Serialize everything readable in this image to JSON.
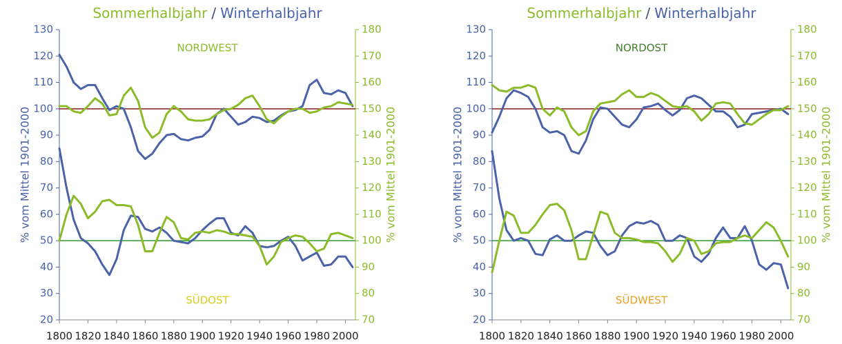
{
  "chart_data": [
    {
      "type": "line",
      "title": [
        "Sommerhalbjahr",
        "/",
        "Winterhalbjahr"
      ],
      "title_colors": [
        "#8cbb2a",
        "#3d4a7a",
        "#4a62a8"
      ],
      "ylabel": "% vom Mittel  1901-2000",
      "ylabel_color": "#4a62a8",
      "y2label": "% vom Mittel  1901-2000",
      "y2label_color": "#8cbb2a",
      "x": [
        1800,
        1805,
        1810,
        1815,
        1820,
        1825,
        1830,
        1835,
        1840,
        1845,
        1850,
        1855,
        1860,
        1865,
        1870,
        1875,
        1880,
        1885,
        1890,
        1895,
        1900,
        1905,
        1910,
        1915,
        1920,
        1925,
        1930,
        1935,
        1940,
        1945,
        1950,
        1955,
        1960,
        1965,
        1970,
        1975,
        1980,
        1985,
        1990,
        1995,
        2000,
        2005
      ],
      "xlim": [
        1800,
        2007
      ],
      "xticks": [
        1800,
        1820,
        1840,
        1860,
        1880,
        1900,
        1920,
        1940,
        1960,
        1980,
        2000
      ],
      "ylim": [
        20,
        130
      ],
      "yticks": [
        20,
        30,
        40,
        50,
        60,
        70,
        80,
        90,
        100,
        110,
        120,
        130
      ],
      "y2lim": [
        70,
        180
      ],
      "y2ticks": [
        70,
        80,
        90,
        100,
        110,
        120,
        130,
        140,
        150,
        160,
        170,
        180
      ],
      "reference_lines": [
        {
          "value": 100,
          "color": "#8b1a1a"
        },
        {
          "value": 50,
          "color": "#2e9a2e"
        }
      ],
      "annotations": [
        {
          "text": "NORDWEST",
          "color": "#8cbb2a"
        },
        {
          "text": "SÜDOST",
          "color": "#d8cc1c"
        }
      ],
      "series": [
        {
          "color": "#4a62a8",
          "values": [
            120.5,
            116,
            110,
            107.5,
            109,
            109,
            104,
            99.5,
            101,
            100,
            93,
            84,
            81,
            83,
            87,
            90,
            90.5,
            88.5,
            88,
            89,
            89.5,
            92,
            98,
            100,
            97,
            94,
            95,
            97,
            96.5,
            95,
            95.5,
            97.5,
            99,
            99.5,
            101,
            109,
            111,
            106,
            105.5,
            107,
            106,
            101
          ]
        },
        {
          "color": "#8cbb2a",
          "axis": "y2",
          "values": [
            151,
            151,
            149,
            148.5,
            151,
            154,
            152,
            147.5,
            148,
            155,
            158,
            153,
            143,
            139,
            141,
            148,
            151,
            149,
            146,
            145.5,
            145.5,
            146,
            148,
            149.5,
            150,
            151.5,
            154,
            155,
            151,
            146,
            144.5,
            147,
            149,
            150,
            150,
            148.5,
            149,
            150.5,
            151,
            152.5,
            152,
            151.5
          ]
        },
        {
          "color": "#4a62a8",
          "values": [
            85,
            70,
            58,
            51,
            49,
            46,
            41,
            37,
            43,
            54,
            59.5,
            59,
            54.5,
            53.5,
            55,
            53,
            50,
            49.5,
            49,
            51,
            54,
            56.5,
            58.5,
            58.5,
            53,
            52,
            55.5,
            53,
            48,
            47.5,
            48,
            50,
            51.5,
            48,
            42.5,
            44,
            45.5,
            40.5,
            41,
            44,
            44,
            40
          ]
        },
        {
          "color": "#8cbb2a",
          "axis": "y2",
          "values": [
            100,
            110,
            117,
            114,
            108.5,
            111,
            115,
            115.5,
            113.5,
            113.5,
            113,
            106,
            96,
            96,
            103,
            109,
            107,
            101,
            100.5,
            103,
            103.5,
            103,
            104,
            103.5,
            102.5,
            102.5,
            102,
            101.5,
            98,
            91,
            94,
            99.5,
            101,
            102,
            101.5,
            99,
            96,
            97,
            102.5,
            103,
            102,
            101
          ]
        }
      ]
    },
    {
      "type": "line",
      "title": [
        "Sommerhalbjahr",
        "/",
        "Winterhalbjahr"
      ],
      "title_colors": [
        "#8cbb2a",
        "#3d4a7a",
        "#4a62a8"
      ],
      "ylabel": "% vom Mittel  1901-2000",
      "ylabel_color": "#4a62a8",
      "y2label": "% vom Mittel  1901-2000",
      "y2label_color": "#8cbb2a",
      "x": [
        1800,
        1805,
        1810,
        1815,
        1820,
        1825,
        1830,
        1835,
        1840,
        1845,
        1850,
        1855,
        1860,
        1865,
        1870,
        1875,
        1880,
        1885,
        1890,
        1895,
        1900,
        1905,
        1910,
        1915,
        1920,
        1925,
        1930,
        1935,
        1940,
        1945,
        1950,
        1955,
        1960,
        1965,
        1970,
        1975,
        1980,
        1985,
        1990,
        1995,
        2000,
        2005
      ],
      "xlim": [
        1800,
        2007
      ],
      "xticks": [
        1800,
        1820,
        1840,
        1860,
        1880,
        1900,
        1920,
        1940,
        1960,
        1980,
        2000
      ],
      "ylim": [
        20,
        130
      ],
      "yticks": [
        20,
        30,
        40,
        50,
        60,
        70,
        80,
        90,
        100,
        110,
        120,
        130
      ],
      "y2lim": [
        70,
        180
      ],
      "y2ticks": [
        70,
        80,
        90,
        100,
        110,
        120,
        130,
        140,
        150,
        160,
        170,
        180
      ],
      "reference_lines": [
        {
          "value": 100,
          "color": "#8b1a1a"
        },
        {
          "value": 50,
          "color": "#2e9a2e"
        }
      ],
      "annotations": [
        {
          "text": "NORDOST",
          "color": "#3f7f2a"
        },
        {
          "text": "SÜDWEST",
          "color": "#e8a020"
        }
      ],
      "series": [
        {
          "color": "#4a62a8",
          "values": [
            91,
            97,
            104,
            107,
            106,
            104.5,
            100,
            93,
            91,
            91.5,
            90,
            84,
            83,
            88,
            96,
            100.5,
            100,
            97,
            94,
            93,
            96,
            100.5,
            101,
            102,
            99.5,
            97.5,
            99.5,
            104,
            105,
            104,
            101.5,
            99,
            99,
            97,
            93,
            94,
            98,
            98.5,
            99,
            99.5,
            100,
            98
          ]
        },
        {
          "color": "#8cbb2a",
          "axis": "y2",
          "values": [
            159,
            157,
            156.5,
            158,
            158,
            159,
            158,
            150,
            147.5,
            150.5,
            149,
            143,
            140,
            141.5,
            149,
            152,
            152.5,
            153,
            155.5,
            157,
            154.5,
            154.5,
            156,
            155,
            153,
            151,
            150.5,
            151,
            149,
            145.5,
            148,
            152,
            152.5,
            152,
            148,
            144.5,
            144,
            146,
            148,
            149.5,
            149.5,
            151
          ]
        },
        {
          "color": "#4a62a8",
          "values": [
            84,
            66,
            54,
            50,
            51,
            50,
            45,
            44.5,
            50.5,
            52,
            50,
            50,
            52,
            53.5,
            53,
            48,
            44.5,
            46,
            52,
            55.5,
            57,
            56.5,
            57.5,
            56,
            50,
            50,
            52,
            51,
            44,
            42,
            45,
            51,
            55,
            51,
            51,
            55.5,
            50,
            41,
            39,
            41.5,
            41,
            32
          ]
        },
        {
          "color": "#8cbb2a",
          "axis": "y2",
          "values": [
            88,
            100,
            111,
            109.5,
            103,
            103,
            106,
            110,
            113.5,
            114,
            111.5,
            104,
            93,
            93,
            102,
            111,
            110,
            103,
            101,
            101,
            100.5,
            99.5,
            99.5,
            99,
            96,
            92,
            95,
            101,
            100,
            95,
            96,
            99,
            99.5,
            99.5,
            101,
            102,
            101,
            104,
            107,
            105,
            100,
            94
          ]
        }
      ]
    }
  ]
}
